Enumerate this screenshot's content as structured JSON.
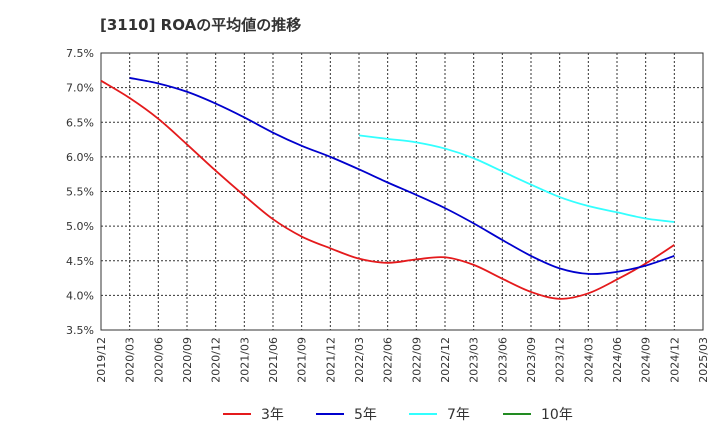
{
  "chart_data": {
    "type": "line",
    "title": "[3110]  ROAの平均値の推移",
    "xlabel": "",
    "ylabel": "",
    "ylim": [
      3.5,
      7.5
    ],
    "y_ticks": [
      "3.5%",
      "4.0%",
      "4.5%",
      "5.0%",
      "5.5%",
      "6.0%",
      "6.5%",
      "7.0%",
      "7.5%"
    ],
    "y_tick_values": [
      3.5,
      4.0,
      4.5,
      5.0,
      5.5,
      6.0,
      6.5,
      7.0,
      7.5
    ],
    "x": [
      "2019/12",
      "2020/03",
      "2020/06",
      "2020/09",
      "2020/12",
      "2021/03",
      "2021/06",
      "2021/09",
      "2021/12",
      "2022/03",
      "2022/06",
      "2022/09",
      "2022/12",
      "2023/03",
      "2023/06",
      "2023/09",
      "2023/12",
      "2024/03",
      "2024/06",
      "2024/09",
      "2024/12",
      "2025/03"
    ],
    "grid": true,
    "legend_position": "bottom",
    "series": [
      {
        "name": "3年",
        "color": "#e41a1c",
        "values": [
          7.1,
          6.85,
          6.55,
          6.18,
          5.8,
          5.44,
          5.1,
          4.85,
          4.68,
          4.53,
          4.47,
          4.52,
          4.55,
          4.44,
          4.24,
          4.05,
          3.95,
          4.03,
          4.23,
          4.46,
          4.73,
          null
        ]
      },
      {
        "name": "5年",
        "color": "#0000cd",
        "values": [
          null,
          7.14,
          7.06,
          6.94,
          6.77,
          6.57,
          6.35,
          6.16,
          6.0,
          5.82,
          5.63,
          5.45,
          5.26,
          5.04,
          4.8,
          4.57,
          4.39,
          4.31,
          4.34,
          4.43,
          4.57,
          null
        ]
      },
      {
        "name": "7年",
        "color": "#33ffff",
        "values": [
          null,
          null,
          null,
          null,
          null,
          null,
          null,
          null,
          null,
          6.31,
          6.26,
          6.21,
          6.12,
          5.98,
          5.79,
          5.6,
          5.42,
          5.29,
          5.2,
          5.11,
          5.06,
          null
        ]
      },
      {
        "name": "10年",
        "color": "#228b22",
        "values": [
          null,
          null,
          null,
          null,
          null,
          null,
          null,
          null,
          null,
          null,
          null,
          null,
          null,
          null,
          null,
          null,
          null,
          null,
          null,
          null,
          null,
          null
        ]
      }
    ]
  }
}
